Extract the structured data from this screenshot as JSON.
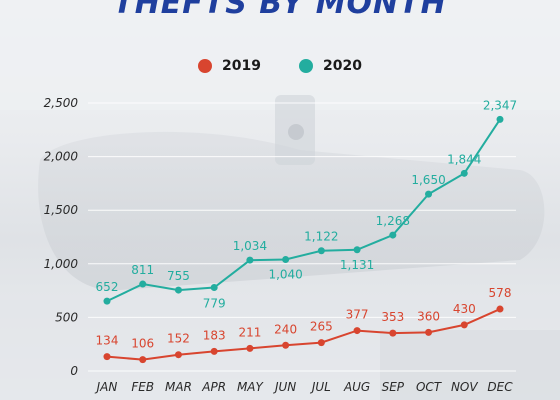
{
  "colors": {
    "series_2019": "#d8452f",
    "series_2020": "#23ad9f",
    "title": "#1f3f9e",
    "axis_text": "#2a2a2a",
    "grid": "#ffffff"
  },
  "chart_data": {
    "type": "line",
    "title": "THEFTS BY MONTH",
    "xlabel": "",
    "ylabel": "",
    "categories": [
      "JAN",
      "FEB",
      "MAR",
      "APR",
      "MAY",
      "JUN",
      "JUL",
      "AUG",
      "SEP",
      "OCT",
      "NOV",
      "DEC"
    ],
    "yticks": [
      "0",
      "500",
      "1,000",
      "1,500",
      "2,000",
      "2,500"
    ],
    "ylim": [
      0,
      2500
    ],
    "grid": true,
    "legend_position": "top-center",
    "series": [
      {
        "name": "2019",
        "color": "#d8452f",
        "values": [
          134,
          106,
          152,
          183,
          211,
          240,
          265,
          377,
          353,
          360,
          430,
          578
        ],
        "labels": [
          "134",
          "106",
          "152",
          "183",
          "211",
          "240",
          "265",
          "377",
          "353",
          "360",
          "430",
          "578"
        ]
      },
      {
        "name": "2020",
        "color": "#23ad9f",
        "values": [
          652,
          811,
          755,
          779,
          1034,
          1040,
          1122,
          1131,
          1268,
          1650,
          1844,
          2347
        ],
        "labels": [
          "652",
          "811",
          "755",
          "779",
          "1,034",
          "1,040",
          "1,122",
          "1,131",
          "1,268",
          "1,650",
          "1,844",
          "2,347"
        ]
      }
    ]
  }
}
